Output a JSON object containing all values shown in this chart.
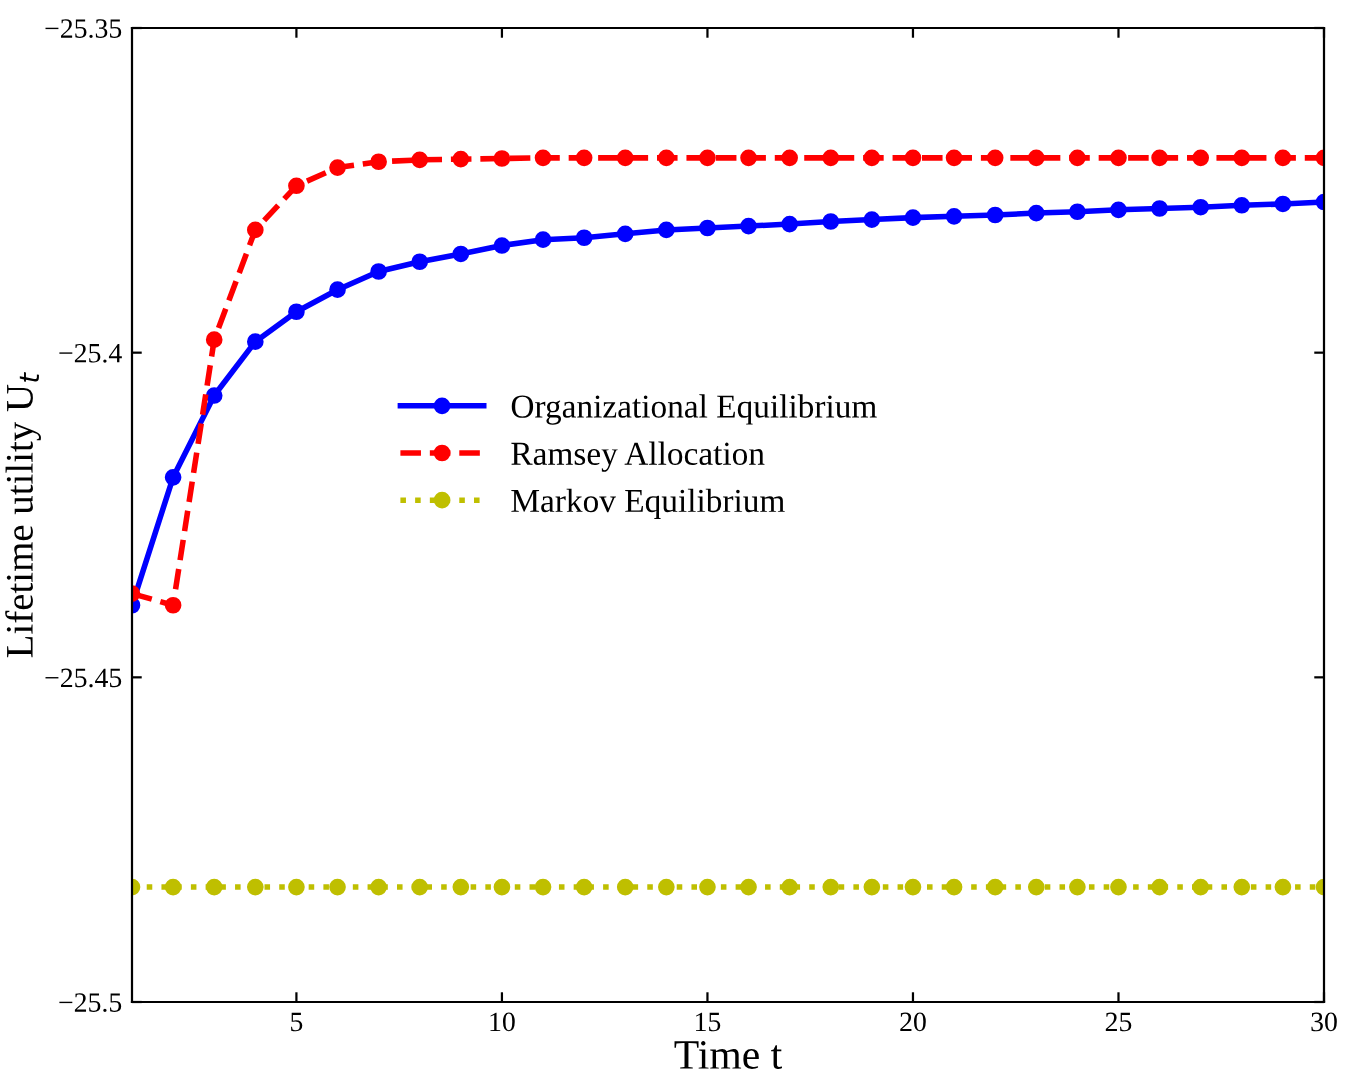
{
  "chart_data": {
    "type": "line",
    "xlabel": "Time t",
    "ylabel": "Lifetime utility U$_{t}$",
    "x": [
      1,
      2,
      3,
      4,
      5,
      6,
      7,
      8,
      9,
      10,
      11,
      12,
      13,
      14,
      15,
      16,
      17,
      18,
      19,
      20,
      21,
      22,
      23,
      24,
      25,
      26,
      27,
      28,
      29,
      30
    ],
    "series": [
      {
        "name": "Organizational Equilibrium",
        "color": "#0000ff",
        "line_style": "solid",
        "values": [
          -25.4389,
          -25.4192,
          -25.4066,
          -25.3983,
          -25.3937,
          -25.3903,
          -25.3875,
          -25.386,
          -25.3848,
          -25.3835,
          -25.3826,
          -25.3823,
          -25.3817,
          -25.3811,
          -25.3808,
          -25.3805,
          -25.3802,
          -25.3798,
          -25.3795,
          -25.3792,
          -25.379,
          -25.3788,
          -25.3785,
          -25.3783,
          -25.378,
          -25.3778,
          -25.3776,
          -25.3773,
          -25.3771,
          -25.3768
        ]
      },
      {
        "name": "Ramsey Allocation",
        "color": "#ff0000",
        "line_style": "dashed",
        "values": [
          -25.4371,
          -25.4389,
          -25.398,
          -25.3811,
          -25.3743,
          -25.3715,
          -25.3706,
          -25.3703,
          -25.3702,
          -25.3701,
          -25.37,
          -25.37,
          -25.37,
          -25.37,
          -25.37,
          -25.37,
          -25.37,
          -25.37,
          -25.37,
          -25.37,
          -25.37,
          -25.37,
          -25.37,
          -25.37,
          -25.37,
          -25.37,
          -25.37,
          -25.37,
          -25.37,
          -25.37
        ]
      },
      {
        "name": "Markov Equilibrium",
        "color": "#bfbf00",
        "line_style": "dotted",
        "values": [
          -25.4823,
          -25.4823,
          -25.4823,
          -25.4823,
          -25.4823,
          -25.4823,
          -25.4823,
          -25.4823,
          -25.4823,
          -25.4823,
          -25.4823,
          -25.4823,
          -25.4823,
          -25.4823,
          -25.4823,
          -25.4823,
          -25.4823,
          -25.4823,
          -25.4823,
          -25.4823,
          -25.4823,
          -25.4823,
          -25.4823,
          -25.4823,
          -25.4823,
          -25.4823,
          -25.4823,
          -25.4823,
          -25.4823,
          -25.4823
        ]
      }
    ],
    "xlim": [
      1,
      30
    ],
    "xticks": [
      5,
      10,
      15,
      20,
      25,
      30
    ],
    "ylim": [
      -25.5,
      -25.35
    ],
    "yticks": [
      {
        "value": -25.5,
        "label": "−25.5"
      },
      {
        "value": -25.45,
        "label": "−25.45"
      },
      {
        "value": -25.4,
        "label": "−25.4"
      },
      {
        "value": -25.35,
        "label": "−25.35"
      }
    ],
    "marker": "circle",
    "grid": false,
    "legend": "center left"
  }
}
